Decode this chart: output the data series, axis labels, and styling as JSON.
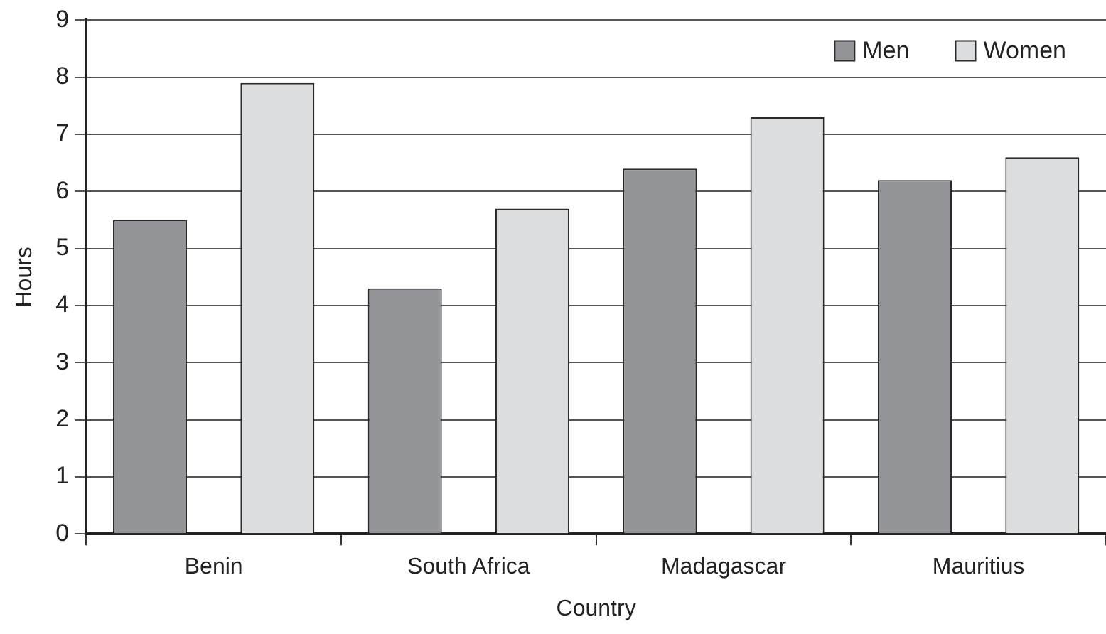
{
  "chart_data": {
    "type": "bar",
    "xlabel": "Country",
    "ylabel": "Hours",
    "categories": [
      "Benin",
      "South Africa",
      "Madagascar",
      "Mauritius"
    ],
    "series": [
      {
        "name": "Men",
        "color": "#939498",
        "values": [
          5.5,
          4.3,
          6.4,
          6.2
        ]
      },
      {
        "name": "Women",
        "color": "#dcdddf",
        "values": [
          7.9,
          5.7,
          7.3,
          6.6
        ]
      }
    ],
    "ylim": [
      0,
      9
    ],
    "yticks": [
      0,
      1,
      2,
      3,
      4,
      5,
      6,
      7,
      8,
      9
    ],
    "grid": "y",
    "legend": "top right"
  }
}
